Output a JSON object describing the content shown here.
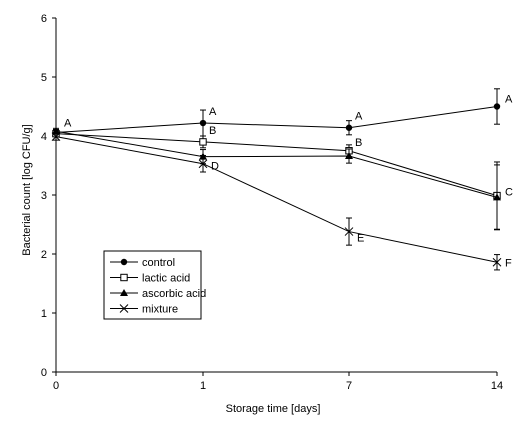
{
  "chart_data": {
    "type": "line",
    "title": "",
    "xlabel": "Storage time [days]",
    "ylabel": "Bacterial count [log CFU/g]",
    "categories": [
      "0",
      "1",
      "7",
      "14"
    ],
    "ylim": [
      0,
      6
    ],
    "yticks": [
      "0",
      "1",
      "2",
      "3",
      "4",
      "5",
      "6"
    ],
    "grid": false,
    "legend_position": "bottom-left",
    "series": [
      {
        "name": "control",
        "marker": "circle-filled",
        "values": [
          4.06,
          4.22,
          4.14,
          4.5
        ],
        "errors": [
          0.05,
          0.22,
          0.12,
          0.3
        ],
        "letters": [
          "A",
          "A",
          "A",
          "A"
        ]
      },
      {
        "name": "lactic acid",
        "marker": "square-open",
        "values": [
          4.04,
          3.9,
          3.75,
          2.99
        ],
        "errors": [
          0.05,
          0.1,
          0.1,
          0.57
        ],
        "letters": [
          "",
          "B",
          "B",
          "C"
        ]
      },
      {
        "name": "ascorbic acid",
        "marker": "triangle-filled",
        "values": [
          4.08,
          3.65,
          3.66,
          2.96
        ],
        "errors": [
          0.05,
          0.12,
          0.12,
          0.55
        ],
        "letters": [
          "",
          "",
          "",
          ""
        ]
      },
      {
        "name": "mixture",
        "marker": "x",
        "values": [
          3.99,
          3.53,
          2.38,
          1.86
        ],
        "errors": [
          0.06,
          0.14,
          0.23,
          0.13
        ],
        "letters": [
          "",
          "D",
          "E",
          "F"
        ]
      }
    ]
  }
}
